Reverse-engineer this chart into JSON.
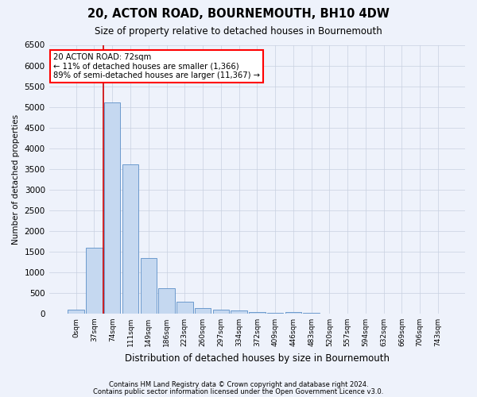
{
  "title1": "20, ACTON ROAD, BOURNEMOUTH, BH10 4DW",
  "title2": "Size of property relative to detached houses in Bournemouth",
  "xlabel": "Distribution of detached houses by size in Bournemouth",
  "ylabel": "Number of detached properties",
  "footer1": "Contains HM Land Registry data © Crown copyright and database right 2024.",
  "footer2": "Contains public sector information licensed under the Open Government Licence v3.0.",
  "annotation_line1": "20 ACTON ROAD: 72sqm",
  "annotation_line2": "← 11% of detached houses are smaller (1,366)",
  "annotation_line3": "89% of semi-detached houses are larger (11,367) →",
  "bar_color": "#c5d8f0",
  "bar_edge_color": "#5b8fc7",
  "vline_color": "#cc0000",
  "background_color": "#eef2fb",
  "categories": [
    "0sqm",
    "37sqm",
    "74sqm",
    "111sqm",
    "149sqm",
    "186sqm",
    "223sqm",
    "260sqm",
    "297sqm",
    "334sqm",
    "372sqm",
    "409sqm",
    "446sqm",
    "483sqm",
    "520sqm",
    "557sqm",
    "594sqm",
    "632sqm",
    "669sqm",
    "706sqm",
    "743sqm"
  ],
  "values": [
    100,
    1600,
    5100,
    3600,
    1350,
    620,
    290,
    140,
    90,
    75,
    45,
    25,
    45,
    12,
    6,
    4,
    2,
    2,
    1,
    1,
    1
  ],
  "ylim": [
    0,
    6500
  ],
  "yticks": [
    0,
    500,
    1000,
    1500,
    2000,
    2500,
    3000,
    3500,
    4000,
    4500,
    5000,
    5500,
    6000,
    6500
  ],
  "vline_index": 1.5,
  "property_bar_index": 2
}
